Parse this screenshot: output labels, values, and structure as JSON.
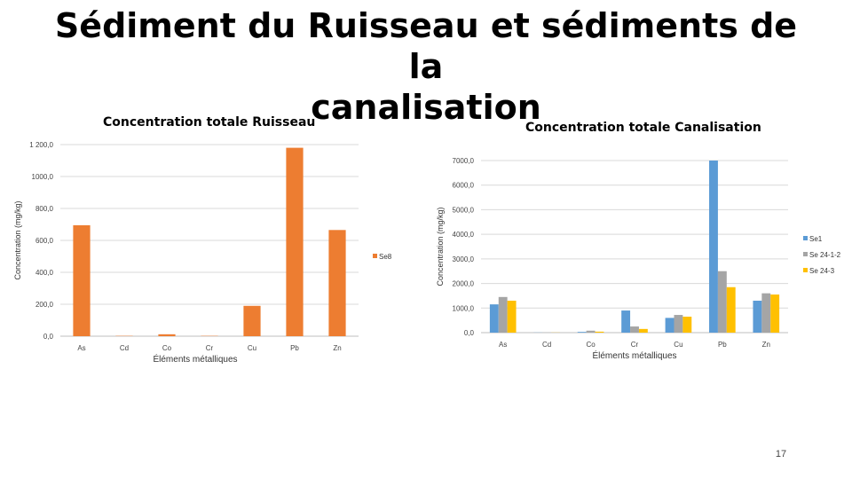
{
  "slide": {
    "title_line1": "Sédiment du Ruisseau et sédiments de la",
    "title_line2": "canalisation",
    "page_number": "17"
  },
  "colors": {
    "se8": "#ED7D31",
    "se1": "#5B9BD5",
    "se24_1_2": "#A5A5A5",
    "se24_3": "#FFC000"
  },
  "chart_data": [
    {
      "type": "bar",
      "title": "Concentration totale Ruisseau",
      "xlabel": "Éléments métalliques",
      "ylabel": "Concentration (mg/kg)",
      "categories": [
        "As",
        "Cd",
        "Co",
        "Cr",
        "Cu",
        "Pb",
        "Zn"
      ],
      "ylim": [
        0,
        1200
      ],
      "yticks": [
        "0,0",
        "200,0",
        "400,0",
        "600,0",
        "800,0",
        "1000,0",
        "1 200,0"
      ],
      "grid": true,
      "legend": "right",
      "series": [
        {
          "name": "Se8",
          "color": "#ED7D31",
          "values": [
            695,
            2,
            12,
            2,
            190,
            1180,
            665
          ]
        }
      ]
    },
    {
      "type": "bar",
      "title": "Concentration totale Canalisation",
      "xlabel": "Éléments métalliques",
      "ylabel": "Concentration (mg/kg)",
      "categories": [
        "As",
        "Cd",
        "Co",
        "Cr",
        "Cu",
        "Pb",
        "Zn"
      ],
      "ylim": [
        0,
        7000
      ],
      "yticks": [
        "0,0",
        "1000,0",
        "2000,0",
        "3000,0",
        "4000,0",
        "5000,0",
        "6000,0",
        "7000,0"
      ],
      "grid": true,
      "legend": "right",
      "series": [
        {
          "name": "Se1",
          "color": "#5B9BD5",
          "values": [
            1150,
            5,
            30,
            900,
            600,
            7000,
            1300
          ]
        },
        {
          "name": "Se 24-1-2",
          "color": "#A5A5A5",
          "values": [
            1450,
            5,
            80,
            250,
            720,
            2500,
            1600
          ]
        },
        {
          "name": "Se 24-3",
          "color": "#FFC000",
          "values": [
            1300,
            5,
            40,
            150,
            650,
            1850,
            1550
          ]
        }
      ]
    }
  ]
}
